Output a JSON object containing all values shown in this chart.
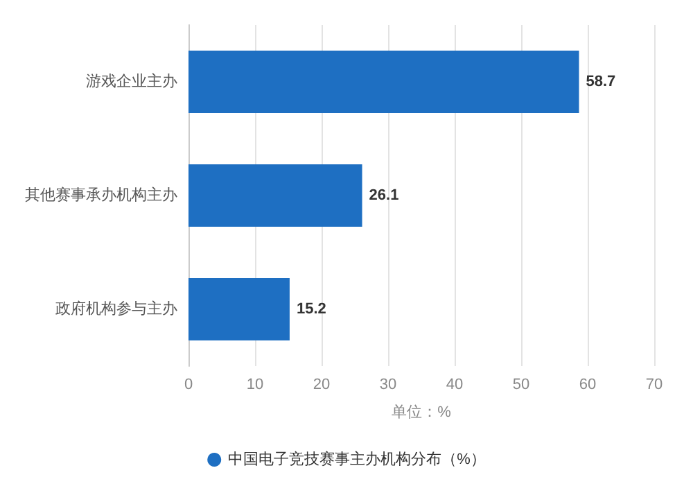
{
  "chart_data": {
    "type": "bar",
    "orientation": "horizontal",
    "categories": [
      "游戏企业主办",
      "其他赛事承办机构主办",
      "政府机构参与主办"
    ],
    "series": [
      {
        "name": "中国电子竞技赛事主办机构分布（%）",
        "color": "#1e6fc2",
        "values": [
          58.7,
          26.1,
          15.2
        ]
      }
    ],
    "xlabel": "单位：%",
    "xlim": [
      0,
      70
    ],
    "xticks": [
      0,
      10,
      20,
      30,
      40,
      50,
      60,
      70
    ],
    "grid": "x",
    "legend": "bottom",
    "data_labels": true
  }
}
